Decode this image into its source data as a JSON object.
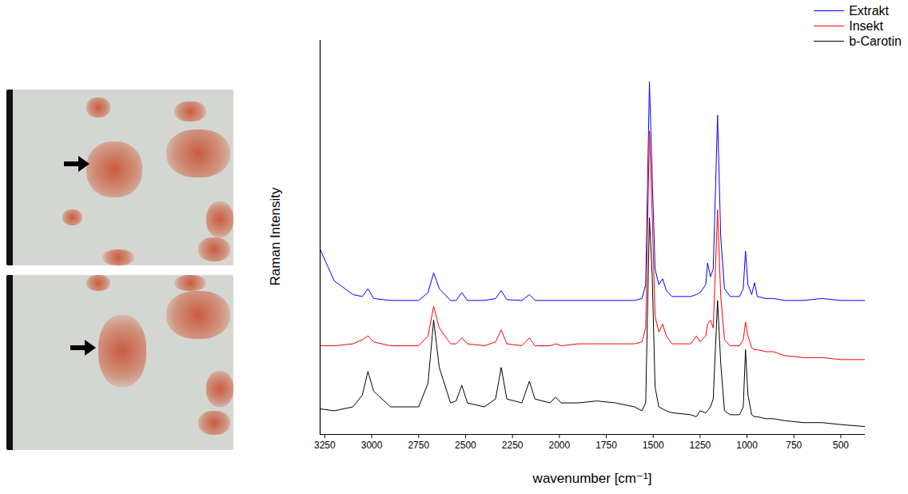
{
  "chart_data": {
    "type": "line",
    "x_label": "wavenumber [cm⁻¹]",
    "y_label": "Raman Intensity",
    "x": [
      3275,
      3200,
      3100,
      3050,
      3020,
      2990,
      2900,
      2750,
      2700,
      2670,
      2640,
      2580,
      2550,
      2520,
      2490,
      2400,
      2340,
      2310,
      2280,
      2200,
      2160,
      2130,
      2050,
      2020,
      1990,
      1900,
      1800,
      1700,
      1600,
      1560,
      1540,
      1520,
      1505,
      1490,
      1470,
      1450,
      1430,
      1400,
      1300,
      1270,
      1250,
      1220,
      1210,
      1195,
      1180,
      1157,
      1140,
      1120,
      1090,
      1040,
      1020,
      1008,
      995,
      975,
      960,
      945,
      900,
      860,
      800,
      700,
      600,
      500,
      370
    ],
    "series": [
      {
        "name": "Extrakt",
        "color": "#0000ff",
        "values": [
          47,
          39,
          35.5,
          35,
          37,
          34.5,
          34,
          34,
          36,
          41,
          37,
          34,
          34,
          36,
          34,
          34,
          34.5,
          36.5,
          34.2,
          34,
          35.5,
          34,
          34,
          34,
          34,
          34,
          34,
          34,
          34,
          34.5,
          38,
          89.5,
          65,
          42,
          38,
          39.5,
          36.5,
          35,
          35,
          35.5,
          36,
          38,
          43.5,
          40,
          42,
          81,
          50,
          37,
          35,
          35,
          37,
          46.5,
          38,
          35.5,
          38.5,
          35,
          34.5,
          34.5,
          34,
          34,
          34.5,
          34,
          34
        ]
      },
      {
        "name": "Insekt",
        "color": "#ff0000",
        "values": [
          22.5,
          22.5,
          23,
          24,
          25,
          23.5,
          22.5,
          22.5,
          25,
          32.5,
          27,
          23,
          23,
          24.5,
          23,
          22.5,
          23.5,
          26.5,
          23,
          22.5,
          24.5,
          22.5,
          22.5,
          23,
          22.5,
          23,
          23,
          23,
          23,
          23.5,
          27,
          77,
          55,
          30,
          26,
          28,
          25,
          23,
          23,
          25,
          23.5,
          25,
          28,
          29,
          27,
          57,
          35,
          24,
          22.5,
          22.5,
          24,
          28.5,
          25,
          22,
          21.5,
          21.5,
          21,
          21,
          20,
          19.5,
          19.5,
          19,
          19
        ]
      },
      {
        "name": "b-Carotin",
        "color": "#000000",
        "values": [
          6.5,
          6,
          7,
          10,
          16,
          11,
          7,
          7,
          13,
          29,
          17,
          8,
          8.5,
          12.5,
          8,
          7,
          9,
          17,
          9,
          8,
          13.5,
          9,
          8,
          9.5,
          8,
          8,
          8.5,
          8,
          7,
          6,
          8,
          55,
          40,
          12,
          7,
          6.5,
          6,
          5.5,
          5,
          4.5,
          6,
          5.5,
          6,
          7,
          9,
          34,
          18,
          6,
          5,
          5,
          7,
          21.5,
          10,
          5,
          4.5,
          4.5,
          4,
          4,
          3.5,
          3,
          3,
          2.5,
          2
        ]
      }
    ],
    "xlim": [
      3275,
      370
    ],
    "xticks": [
      3250,
      3000,
      2750,
      2500,
      2250,
      2000,
      1750,
      1500,
      1250,
      1000,
      750,
      500
    ],
    "ylim": [
      0,
      100
    ],
    "tick_labels": "x",
    "legend": "top-right"
  }
}
